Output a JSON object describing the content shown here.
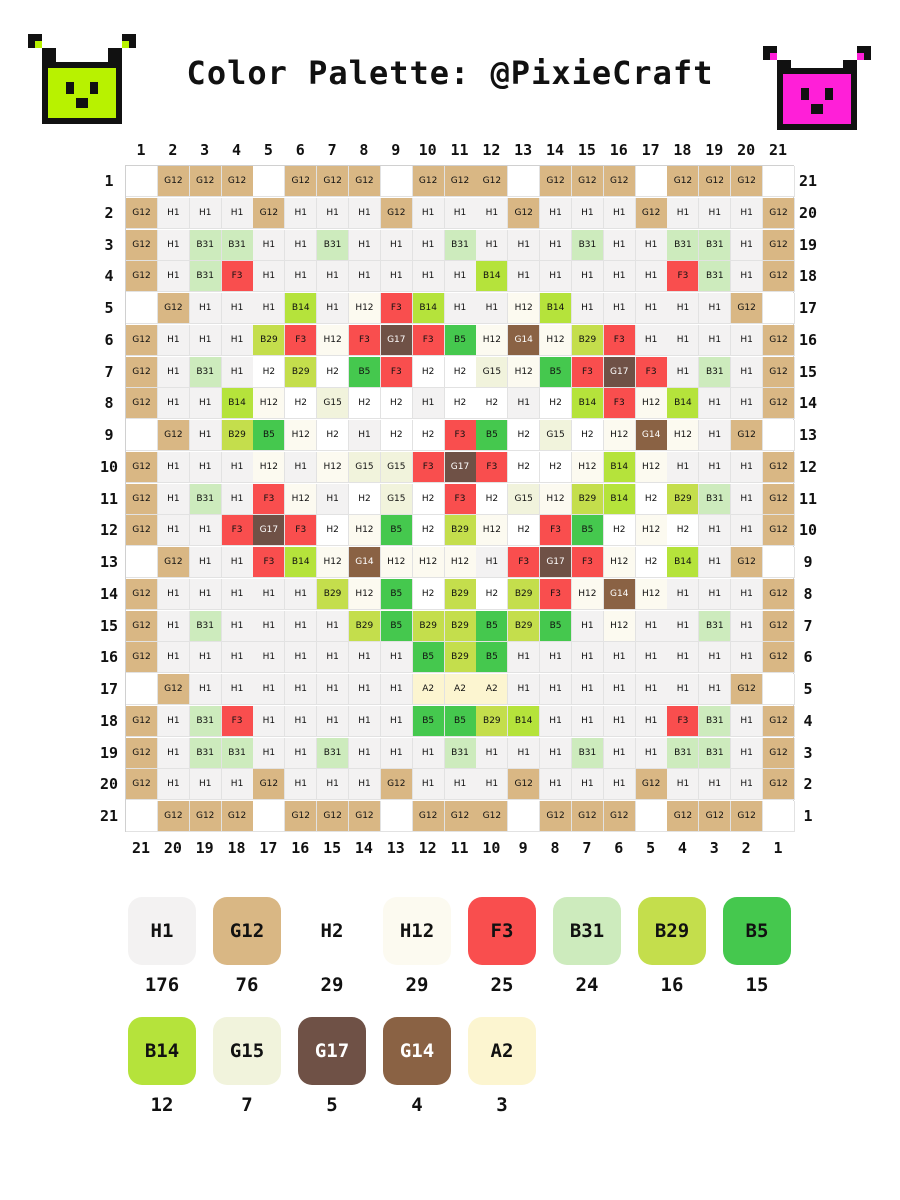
{
  "title": "Color Palette: @PixieCraft",
  "mascots": [
    {
      "name": "left-mascot",
      "color": "#b8f200"
    },
    {
      "name": "right-mascot",
      "color": "#ff1fd8"
    }
  ],
  "columns_top": [
    "1",
    "2",
    "3",
    "4",
    "5",
    "6",
    "7",
    "8",
    "9",
    "10",
    "11",
    "12",
    "13",
    "14",
    "15",
    "16",
    "17",
    "18",
    "19",
    "20",
    "21"
  ],
  "columns_bottom": [
    "21",
    "20",
    "19",
    "18",
    "17",
    "16",
    "15",
    "14",
    "13",
    "12",
    "11",
    "10",
    "9",
    "8",
    "7",
    "6",
    "5",
    "4",
    "3",
    "2",
    "1"
  ],
  "rows_left": [
    "1",
    "2",
    "3",
    "4",
    "5",
    "6",
    "7",
    "8",
    "9",
    "10",
    "11",
    "12",
    "13",
    "14",
    "15",
    "16",
    "17",
    "18",
    "19",
    "20",
    "21"
  ],
  "rows_right": [
    "21",
    "20",
    "19",
    "18",
    "17",
    "16",
    "15",
    "14",
    "13",
    "12",
    "11",
    "10",
    "9",
    "8",
    "7",
    "6",
    "5",
    "4",
    "3",
    "2",
    "1"
  ],
  "grid": [
    [
      "",
      "G12",
      "G12",
      "G12",
      "",
      "G12",
      "G12",
      "G12",
      "",
      "G12",
      "G12",
      "G12",
      "",
      "G12",
      "G12",
      "G12",
      "",
      "G12",
      "G12",
      "G12",
      ""
    ],
    [
      "G12",
      "H1",
      "H1",
      "H1",
      "G12",
      "H1",
      "H1",
      "H1",
      "G12",
      "H1",
      "H1",
      "H1",
      "G12",
      "H1",
      "H1",
      "H1",
      "G12",
      "H1",
      "H1",
      "H1",
      "G12"
    ],
    [
      "G12",
      "H1",
      "B31",
      "B31",
      "H1",
      "H1",
      "B31",
      "H1",
      "H1",
      "H1",
      "B31",
      "H1",
      "H1",
      "H1",
      "B31",
      "H1",
      "H1",
      "B31",
      "B31",
      "H1",
      "G12"
    ],
    [
      "G12",
      "H1",
      "B31",
      "F3",
      "H1",
      "H1",
      "H1",
      "H1",
      "H1",
      "H1",
      "H1",
      "B14",
      "H1",
      "H1",
      "H1",
      "H1",
      "H1",
      "F3",
      "B31",
      "H1",
      "G12"
    ],
    [
      "",
      "G12",
      "H1",
      "H1",
      "H1",
      "B14",
      "H1",
      "H12",
      "F3",
      "B14",
      "H1",
      "H1",
      "H12",
      "B14",
      "H1",
      "H1",
      "H1",
      "H1",
      "H1",
      "G12",
      ""
    ],
    [
      "G12",
      "H1",
      "H1",
      "H1",
      "B29",
      "F3",
      "H12",
      "F3",
      "G17",
      "F3",
      "B5",
      "H12",
      "G14",
      "H12",
      "B29",
      "F3",
      "H1",
      "H1",
      "H1",
      "H1",
      "G12"
    ],
    [
      "G12",
      "H1",
      "B31",
      "H1",
      "H2",
      "B29",
      "H2",
      "B5",
      "F3",
      "H2",
      "H2",
      "G15",
      "H12",
      "B5",
      "F3",
      "G17",
      "F3",
      "H1",
      "B31",
      "H1",
      "G12"
    ],
    [
      "G12",
      "H1",
      "H1",
      "B14",
      "H12",
      "H2",
      "G15",
      "H2",
      "H2",
      "H1",
      "H2",
      "H2",
      "H1",
      "H2",
      "B14",
      "F3",
      "H12",
      "B14",
      "H1",
      "H1",
      "G12"
    ],
    [
      "",
      "G12",
      "H1",
      "B29",
      "B5",
      "H12",
      "H2",
      "H1",
      "H2",
      "H2",
      "F3",
      "B5",
      "H2",
      "G15",
      "H2",
      "H12",
      "G14",
      "H12",
      "H1",
      "G12",
      ""
    ],
    [
      "G12",
      "H1",
      "H1",
      "H1",
      "H12",
      "H1",
      "H12",
      "G15",
      "G15",
      "F3",
      "G17",
      "F3",
      "H2",
      "H2",
      "H12",
      "B14",
      "H12",
      "H1",
      "H1",
      "H1",
      "G12"
    ],
    [
      "G12",
      "H1",
      "B31",
      "H1",
      "F3",
      "H12",
      "H1",
      "H2",
      "G15",
      "H2",
      "F3",
      "H2",
      "G15",
      "H12",
      "B29",
      "B14",
      "H2",
      "B29",
      "B31",
      "H1",
      "G12"
    ],
    [
      "G12",
      "H1",
      "H1",
      "F3",
      "G17",
      "F3",
      "H2",
      "H12",
      "B5",
      "H2",
      "B29",
      "H12",
      "H2",
      "F3",
      "B5",
      "H2",
      "H12",
      "H2",
      "H1",
      "H1",
      "G12"
    ],
    [
      "",
      "G12",
      "H1",
      "H1",
      "F3",
      "B14",
      "H12",
      "G14",
      "H12",
      "H12",
      "H12",
      "H1",
      "F3",
      "G17",
      "F3",
      "H12",
      "H2",
      "B14",
      "H1",
      "G12",
      ""
    ],
    [
      "G12",
      "H1",
      "H1",
      "H1",
      "H1",
      "H1",
      "B29",
      "H12",
      "B5",
      "H2",
      "B29",
      "H2",
      "B29",
      "F3",
      "H12",
      "G14",
      "H12",
      "H1",
      "H1",
      "H1",
      "G12"
    ],
    [
      "G12",
      "H1",
      "B31",
      "H1",
      "H1",
      "H1",
      "H1",
      "B29",
      "B5",
      "B29",
      "B29",
      "B5",
      "B29",
      "B5",
      "H1",
      "H12",
      "H1",
      "H1",
      "B31",
      "H1",
      "G12"
    ],
    [
      "G12",
      "H1",
      "H1",
      "H1",
      "H1",
      "H1",
      "H1",
      "H1",
      "H1",
      "B5",
      "B29",
      "B5",
      "H1",
      "H1",
      "H1",
      "H1",
      "H1",
      "H1",
      "H1",
      "H1",
      "G12"
    ],
    [
      "",
      "G12",
      "H1",
      "H1",
      "H1",
      "H1",
      "H1",
      "H1",
      "H1",
      "A2",
      "A2",
      "A2",
      "H1",
      "H1",
      "H1",
      "H1",
      "H1",
      "H1",
      "H1",
      "G12",
      ""
    ],
    [
      "G12",
      "H1",
      "B31",
      "F3",
      "H1",
      "H1",
      "H1",
      "H1",
      "H1",
      "B5",
      "B5",
      "B29",
      "B14",
      "H1",
      "H1",
      "H1",
      "H1",
      "F3",
      "B31",
      "H1",
      "G12"
    ],
    [
      "G12",
      "H1",
      "B31",
      "B31",
      "H1",
      "H1",
      "B31",
      "H1",
      "H1",
      "H1",
      "B31",
      "H1",
      "H1",
      "H1",
      "B31",
      "H1",
      "H1",
      "B31",
      "B31",
      "H1",
      "G12"
    ],
    [
      "G12",
      "H1",
      "H1",
      "H1",
      "G12",
      "H1",
      "H1",
      "H1",
      "G12",
      "H1",
      "H1",
      "H1",
      "G12",
      "H1",
      "H1",
      "H1",
      "G12",
      "H1",
      "H1",
      "H1",
      "G12"
    ],
    [
      "",
      "G12",
      "G12",
      "G12",
      "",
      "G12",
      "G12",
      "G12",
      "",
      "G12",
      "G12",
      "G12",
      "",
      "G12",
      "G12",
      "G12",
      "",
      "G12",
      "G12",
      "G12",
      ""
    ]
  ],
  "palette": [
    {
      "code": "H1",
      "count": "176",
      "color": "#f3f2f2",
      "text": "#111111"
    },
    {
      "code": "G12",
      "count": "76",
      "color": "#d9b784",
      "text": "#111111"
    },
    {
      "code": "H2",
      "count": "29",
      "color": "#ffffff",
      "text": "#111111"
    },
    {
      "code": "H12",
      "count": "29",
      "color": "#fcfaf0",
      "text": "#111111"
    },
    {
      "code": "F3",
      "count": "25",
      "color": "#f94e4e",
      "text": "#111111"
    },
    {
      "code": "B31",
      "count": "24",
      "color": "#cdebbd",
      "text": "#111111"
    },
    {
      "code": "B29",
      "count": "16",
      "color": "#c4de4c",
      "text": "#111111"
    },
    {
      "code": "B5",
      "count": "15",
      "color": "#45c84e",
      "text": "#111111"
    },
    {
      "code": "B14",
      "count": "12",
      "color": "#b5e33b",
      "text": "#111111"
    },
    {
      "code": "G15",
      "count": "7",
      "color": "#f1f3dc",
      "text": "#111111"
    },
    {
      "code": "G17",
      "count": "5",
      "color": "#6f5146",
      "text": "#ffffff"
    },
    {
      "code": "G14",
      "count": "4",
      "color": "#8a6244",
      "text": "#ffffff"
    },
    {
      "code": "A2",
      "count": "3",
      "color": "#fcf5d0",
      "text": "#111111"
    }
  ]
}
